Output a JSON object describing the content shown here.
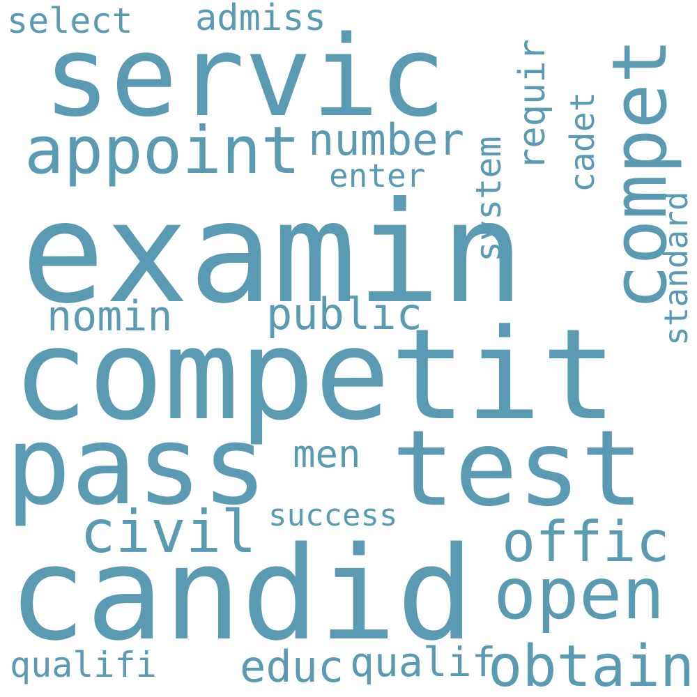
{
  "word_color": "#5a9bb3",
  "background": "#ffffff",
  "words": {
    "examin": "examin",
    "competit": "competit",
    "candid": "candid",
    "servic": "servic",
    "test": "test",
    "pass": "pass",
    "compet": "compet",
    "appoint": "appoint",
    "open": "open",
    "obtain": "obtain",
    "offic": "offic",
    "civil": "civil",
    "public": "public",
    "nomin": "nomin",
    "number": "number",
    "enter": "enter",
    "system": "system",
    "requir": "requir",
    "cadet": "cadet",
    "standard": "standard",
    "select": "select",
    "admiss": "admiss",
    "men": "men",
    "success": "success",
    "qualifi": "qualifi",
    "educ": "educ",
    "qualif": "qualif"
  }
}
